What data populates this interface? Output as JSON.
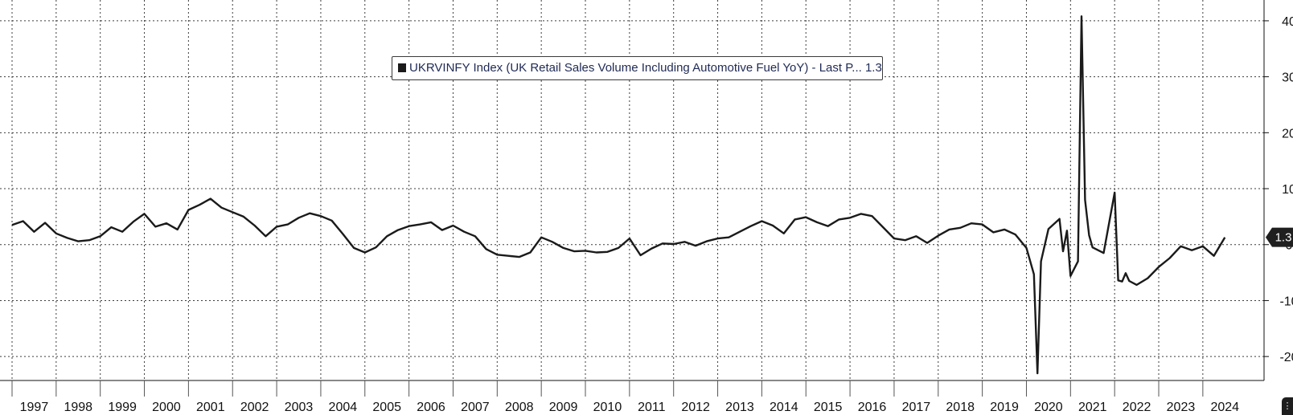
{
  "legend": {
    "text": "UKRVINFY Index (UK Retail Sales Volume Including Automotive Fuel YoY) - Last P... 1.3"
  },
  "last_value_label": "1.3",
  "chart_data": {
    "type": "line",
    "title": "",
    "xlabel": "",
    "ylabel": "",
    "y_axis_side": "right",
    "ylim": [
      -25,
      43
    ],
    "y_ticks": [
      -20,
      -10,
      0,
      10,
      20,
      30,
      40
    ],
    "y_tick_labels": [
      "-20",
      "-10",
      "0",
      "10",
      "20",
      "30",
      "40"
    ],
    "x_range": [
      1997.0,
      2024.75
    ],
    "x_tick_labels": [
      "1997",
      "1998",
      "1999",
      "2000",
      "2001",
      "2002",
      "2003",
      "2004",
      "2005",
      "2006",
      "2007",
      "2008",
      "2009",
      "2010",
      "2011",
      "2012",
      "2013",
      "2014",
      "2015",
      "2016",
      "2017",
      "2018",
      "2019",
      "2020",
      "2021",
      "2022",
      "2023",
      "2024"
    ],
    "grid": true,
    "legend_position": "top-center",
    "line_color": "#1a1a1a",
    "series": [
      {
        "name": "UKRVINFY Index (UK Retail Sales Volume Including Automotive Fuel YoY)",
        "last_value": 1.3,
        "x": [
          1997.0,
          1997.25,
          1997.5,
          1997.75,
          1998.0,
          1998.25,
          1998.5,
          1998.75,
          1999.0,
          1999.25,
          1999.5,
          1999.75,
          2000.0,
          2000.25,
          2000.5,
          2000.75,
          2001.0,
          2001.25,
          2001.5,
          2001.75,
          2002.0,
          2002.25,
          2002.5,
          2002.75,
          2003.0,
          2003.25,
          2003.5,
          2003.75,
          2004.0,
          2004.25,
          2004.5,
          2004.75,
          2005.0,
          2005.25,
          2005.5,
          2005.75,
          2006.0,
          2006.25,
          2006.5,
          2006.75,
          2007.0,
          2007.25,
          2007.5,
          2007.75,
          2008.0,
          2008.25,
          2008.5,
          2008.75,
          2009.0,
          2009.25,
          2009.5,
          2009.75,
          2010.0,
          2010.25,
          2010.5,
          2010.75,
          2011.0,
          2011.25,
          2011.5,
          2011.75,
          2012.0,
          2012.25,
          2012.5,
          2012.75,
          2013.0,
          2013.25,
          2013.5,
          2013.75,
          2014.0,
          2014.25,
          2014.5,
          2014.75,
          2015.0,
          2015.25,
          2015.5,
          2015.75,
          2016.0,
          2016.25,
          2016.5,
          2016.75,
          2017.0,
          2017.25,
          2017.5,
          2017.75,
          2018.0,
          2018.25,
          2018.5,
          2018.75,
          2019.0,
          2019.25,
          2019.5,
          2019.75,
          2020.0,
          2020.17,
          2020.25,
          2020.33,
          2020.5,
          2020.75,
          2020.83,
          2020.92,
          2021.0,
          2021.17,
          2021.25,
          2021.33,
          2021.42,
          2021.5,
          2021.75,
          2022.0,
          2022.08,
          2022.17,
          2022.25,
          2022.33,
          2022.5,
          2022.75,
          2023.0,
          2023.25,
          2023.5,
          2023.75,
          2024.0,
          2024.25,
          2024.5
        ],
        "y": [
          3.5,
          4.2,
          2.3,
          3.9,
          2.0,
          1.2,
          0.6,
          0.8,
          1.5,
          3.1,
          2.3,
          4.1,
          5.5,
          3.2,
          3.8,
          2.7,
          6.2,
          7.1,
          8.2,
          6.6,
          5.8,
          5.0,
          3.4,
          1.5,
          3.2,
          3.6,
          4.8,
          5.6,
          5.1,
          4.3,
          1.9,
          -0.6,
          -1.4,
          -0.5,
          1.5,
          2.6,
          3.3,
          3.6,
          4.0,
          2.6,
          3.4,
          2.3,
          1.5,
          -0.8,
          -1.8,
          -2.0,
          -2.2,
          -1.4,
          1.3,
          0.5,
          -0.6,
          -1.2,
          -1.1,
          -1.4,
          -1.3,
          -0.6,
          1.1,
          -1.9,
          -0.7,
          0.2,
          0.1,
          0.5,
          -0.2,
          0.6,
          1.1,
          1.3,
          2.3,
          3.3,
          4.2,
          3.4,
          2.0,
          4.5,
          4.9,
          4.0,
          3.3,
          4.5,
          4.8,
          5.5,
          5.1,
          3.1,
          1.1,
          0.8,
          1.5,
          0.3,
          1.6,
          2.7,
          3.0,
          3.8,
          3.6,
          2.2,
          2.7,
          1.8,
          -0.6,
          -5.3,
          -23.0,
          -3.0,
          2.8,
          4.6,
          -1.2,
          2.5,
          -5.6,
          -3.0,
          40.8,
          8.0,
          1.7,
          -0.5,
          -1.5,
          9.3,
          -6.4,
          -6.6,
          -5.1,
          -6.5,
          -7.2,
          -6.0,
          -4.0,
          -2.4,
          -0.3,
          -1.0,
          -0.3,
          -2.0,
          1.3
        ]
      }
    ]
  }
}
